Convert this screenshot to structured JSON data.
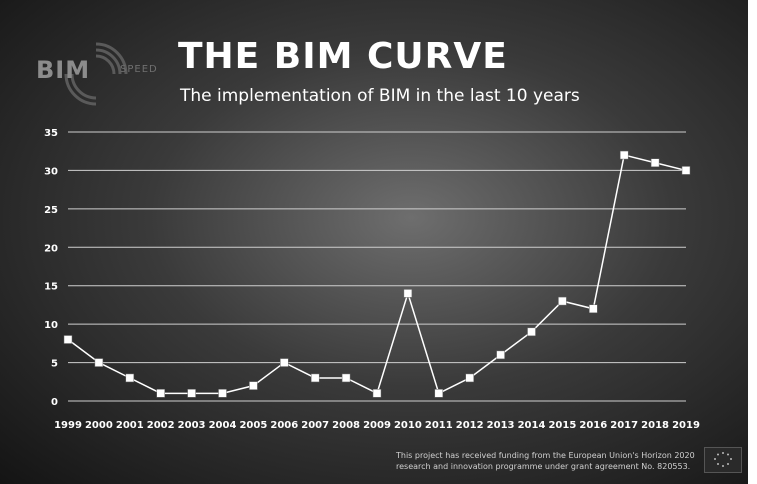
{
  "header": {
    "logo_text": "BIM",
    "logo_sub": "SPEED",
    "title": "THE BIM CURVE",
    "subtitle": "The implementation of BIM in the last 10 years"
  },
  "footer": {
    "funding_text": "This project has received funding from the European Union's Horizon 2020 research and innovation programme under grant agreement No. 820553."
  },
  "chart_data": {
    "type": "line",
    "categories": [
      "1999",
      "2000",
      "2001",
      "2002",
      "2003",
      "2004",
      "2005",
      "2006",
      "2007",
      "2008",
      "2009",
      "2010",
      "2011",
      "2012",
      "2013",
      "2014",
      "2015",
      "2016",
      "2017",
      "2018",
      "2019"
    ],
    "values": [
      8,
      5,
      3,
      1,
      1,
      1,
      2,
      5,
      3,
      3,
      1,
      14,
      1,
      3,
      6,
      9,
      13,
      12,
      32,
      31,
      30
    ],
    "yticks": [
      0,
      5,
      10,
      15,
      20,
      25,
      30,
      35
    ],
    "ylim": [
      0,
      35
    ],
    "grid": true,
    "title": "",
    "xlabel": "",
    "ylabel": "",
    "line_color": "#ffffff",
    "marker": "square"
  }
}
